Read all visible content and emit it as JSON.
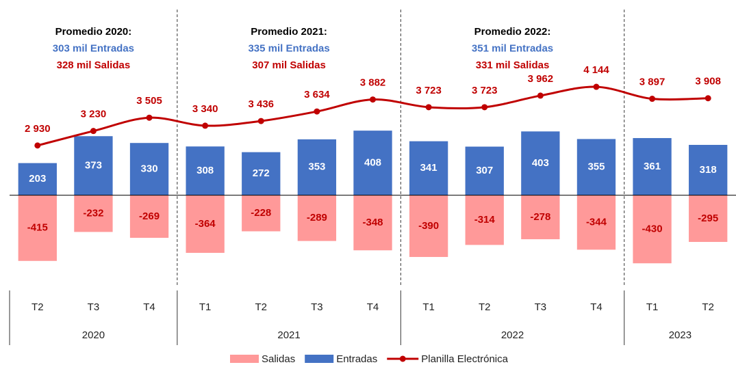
{
  "chart_data": {
    "type": "bar-line",
    "categories": [
      "T2",
      "T3",
      "T4",
      "T1",
      "T2",
      "T3",
      "T4",
      "T1",
      "T2",
      "T3",
      "T4",
      "T1",
      "T2"
    ],
    "x_groups": [
      "2020",
      null,
      null,
      "2021",
      null,
      null,
      null,
      "2022",
      null,
      null,
      null,
      "2023",
      null
    ],
    "series": [
      {
        "name": "Salidas",
        "color": "#ff9999",
        "label_color": "#c00000",
        "values": [
          -415,
          -232,
          -269,
          -364,
          -228,
          -289,
          -348,
          -390,
          -314,
          -278,
          -344,
          -430,
          -295
        ]
      },
      {
        "name": "Entradas",
        "color": "#4472c4",
        "label_color": "#ffffff",
        "values": [
          203,
          373,
          330,
          308,
          272,
          353,
          408,
          341,
          307,
          403,
          355,
          361,
          318
        ]
      },
      {
        "name": "Planilla Electrónica",
        "color": "#c00000",
        "axis": "y2",
        "kind": "line",
        "values": [
          2930,
          3230,
          3505,
          3340,
          3436,
          3634,
          3882,
          3723,
          3723,
          3962,
          4144,
          3897,
          3908
        ],
        "value_labels": [
          "2 930",
          "3 230",
          "3 505",
          "3 340",
          "3 436",
          "3 634",
          "3 882",
          "3 723",
          "3 723",
          "3 962",
          "4 144",
          "3 897",
          "3 908"
        ]
      }
    ],
    "ylim": [
      -580,
      1190
    ],
    "y2lim": [
      0,
      5800
    ],
    "annotations": [
      {
        "lines": [
          "Promedio 2020:",
          "303 mil Entradas",
          "328 mil Salidas"
        ]
      },
      {
        "lines": [
          "Promedio 2021:",
          "335 mil Entradas",
          "307 mil Salidas"
        ]
      },
      {
        "lines": [
          "Promedio 2022:",
          "351 mil Entradas",
          "331 mil Salidas"
        ]
      }
    ]
  }
}
